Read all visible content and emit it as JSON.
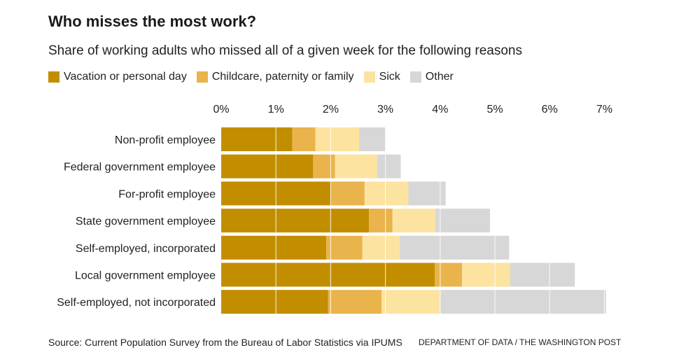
{
  "header": {
    "title": "Who misses the most work?",
    "subtitle": "Share of working adults who missed all of a given week for the following reasons"
  },
  "footer": {
    "source": "Source: Current Population Survey from the Bureau of Labor Statistics via IPUMS",
    "credit": "DEPARTMENT OF DATA / THE WASHINGTON POST"
  },
  "colors": {
    "vacation": "#c28e00",
    "childcare": "#e9b44c",
    "sick": "#fde3a0",
    "other": "#d7d7d7",
    "gridline": "#ffffff"
  },
  "chart_data": {
    "type": "bar",
    "orientation": "horizontal",
    "stacked": true,
    "title": "Who misses the most work?",
    "subtitle": "Share of working adults who missed all of a given week for the following reasons",
    "xlabel": "",
    "ylabel": "",
    "xlim": [
      0,
      7
    ],
    "xticks": [
      0,
      1,
      2,
      3,
      4,
      5,
      6,
      7
    ],
    "xtick_labels": [
      "0%",
      "1%",
      "2%",
      "3%",
      "4%",
      "5%",
      "6%",
      "7%"
    ],
    "legend_position": "top-left",
    "categories": [
      "Non-profit employee",
      "Federal government employee",
      "For-profit employee",
      "State government employee",
      "Self-employed, incorporated",
      "Local government employee",
      "Self-employed, not incorporated"
    ],
    "series": [
      {
        "name": "Vacation or personal day",
        "color_key": "vacation",
        "values": [
          1.3,
          1.68,
          2.0,
          2.7,
          1.92,
          3.9,
          1.95
        ]
      },
      {
        "name": "Childcare, paternity or family",
        "color_key": "childcare",
        "values": [
          0.42,
          0.4,
          0.62,
          0.43,
          0.66,
          0.5,
          0.98
        ]
      },
      {
        "name": "Sick",
        "color_key": "sick",
        "values": [
          0.8,
          0.77,
          0.8,
          0.78,
          0.68,
          0.88,
          1.07
        ]
      },
      {
        "name": "Other",
        "color_key": "other",
        "values": [
          0.48,
          0.43,
          0.68,
          1.0,
          2.0,
          1.18,
          3.03
        ]
      }
    ]
  }
}
